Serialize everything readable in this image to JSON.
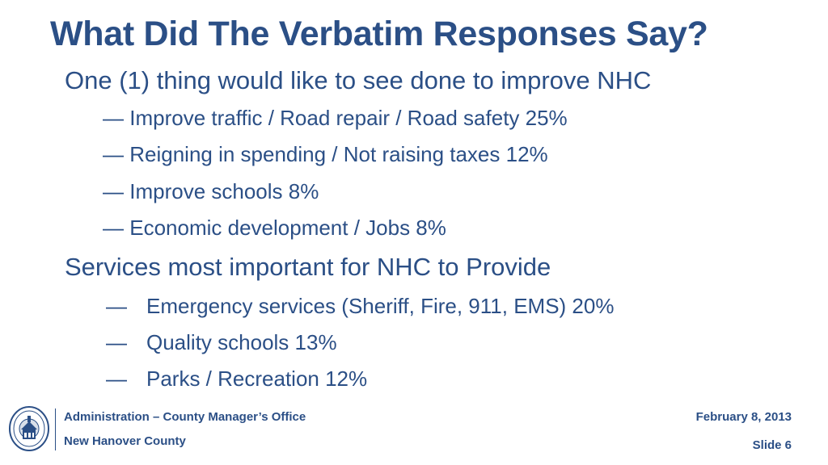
{
  "slide": {
    "title": "What Did The Verbatim Responses Say?",
    "sections": [
      {
        "heading": "One (1) thing would like to see done to improve NHC",
        "items": [
          "Improve traffic / Road repair / Road safety 25%",
          "Reigning in spending / Not raising taxes 12%",
          "Improve schools 8%",
          "Economic development / Jobs 8%"
        ]
      },
      {
        "heading": "Services most important for NHC to Provide",
        "items": [
          "Emergency services (Sheriff, Fire, 911, EMS) 20%",
          "Quality schools 13%",
          "Parks / Recreation 12%"
        ]
      }
    ],
    "bullet": "—"
  },
  "footer": {
    "department": "Administration – County Manager’s Office",
    "county": "New Hanover County",
    "date": "February 8, 2013",
    "slide_number": "Slide 6",
    "logo_icon": "county-seal-icon"
  },
  "colors": {
    "text": "#2b4f86",
    "background": "#ffffff"
  }
}
